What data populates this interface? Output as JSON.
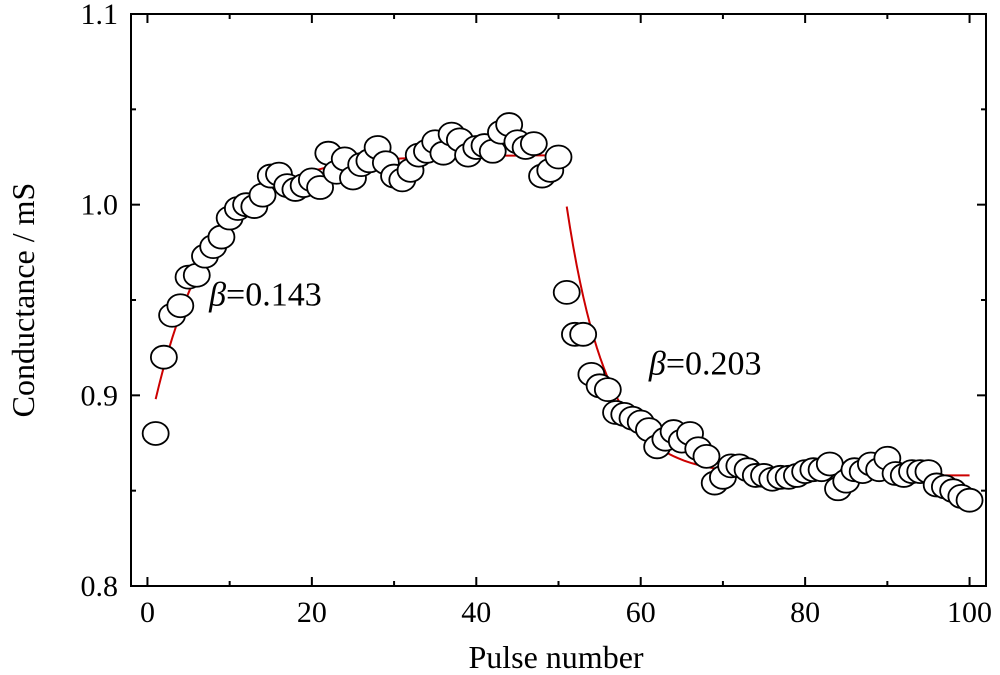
{
  "chart_data": {
    "type": "scatter",
    "title": "",
    "xlabel": "Pulse number",
    "ylabel": "Conductance / mS",
    "xlim": [
      -2,
      102
    ],
    "ylim": [
      0.8,
      1.1
    ],
    "xticks": [
      0,
      20,
      40,
      60,
      80,
      100
    ],
    "yticks": [
      0.8,
      0.9,
      1.0,
      1.1
    ],
    "xtick_labels": [
      "0",
      "20",
      "40",
      "60",
      "80",
      "100"
    ],
    "ytick_labels": [
      "0.8",
      "0.9",
      "1.0",
      "1.1"
    ],
    "grid": false,
    "legend": "none",
    "marker_color": "#ffffff",
    "marker_edge_color": "#000000",
    "fit_color": "#cc0000",
    "annotations": [
      {
        "symbol": "β",
        "text": "=0.143",
        "x": 7.5,
        "y": 0.947
      },
      {
        "symbol": "β",
        "text": "=0.203",
        "x": 61,
        "y": 0.911
      }
    ],
    "series": [
      {
        "x": [
          1,
          2,
          3,
          4,
          5,
          6,
          7,
          8,
          9,
          10,
          11,
          12,
          13,
          14,
          15,
          16,
          17,
          18,
          19,
          20,
          21,
          22,
          23,
          24,
          25,
          26,
          27,
          28,
          29,
          30,
          31,
          32,
          33,
          34,
          35,
          36,
          37,
          38,
          39,
          40,
          41,
          42,
          43,
          44,
          45,
          46,
          47,
          48,
          49,
          50,
          51,
          52,
          53,
          54,
          55,
          56,
          57,
          58,
          59,
          60,
          61,
          62,
          63,
          64,
          65,
          66,
          67,
          68,
          69,
          70,
          71,
          72,
          73,
          74,
          75,
          76,
          77,
          78,
          79,
          80,
          81,
          82,
          83,
          84,
          85,
          86,
          87,
          88,
          89,
          90,
          91,
          92,
          93,
          94,
          95,
          96,
          97,
          98,
          99,
          100
        ],
        "y": [
          0.88,
          0.92,
          0.942,
          0.947,
          0.962,
          0.963,
          0.973,
          0.978,
          0.983,
          0.993,
          0.998,
          1.0,
          0.999,
          1.005,
          1.015,
          1.016,
          1.01,
          1.008,
          1.01,
          1.013,
          1.009,
          1.027,
          1.017,
          1.024,
          1.014,
          1.021,
          1.023,
          1.03,
          1.022,
          1.015,
          1.013,
          1.018,
          1.026,
          1.028,
          1.033,
          1.027,
          1.037,
          1.034,
          1.026,
          1.03,
          1.031,
          1.028,
          1.038,
          1.042,
          1.033,
          1.03,
          1.032,
          1.015,
          1.018,
          1.025,
          0.954,
          0.932,
          0.932,
          0.911,
          0.905,
          0.903,
          0.891,
          0.89,
          0.888,
          0.886,
          0.882,
          0.873,
          0.877,
          0.881,
          0.876,
          0.88,
          0.872,
          0.868,
          0.854,
          0.857,
          0.863,
          0.863,
          0.861,
          0.858,
          0.858,
          0.856,
          0.857,
          0.857,
          0.858,
          0.86,
          0.861,
          0.861,
          0.864,
          0.851,
          0.855,
          0.861,
          0.86,
          0.864,
          0.861,
          0.867,
          0.859,
          0.858,
          0.86,
          0.86,
          0.86,
          0.853,
          0.852,
          0.85,
          0.847,
          0.845
        ]
      }
    ],
    "fits": [
      {
        "x_start": 1,
        "x_end": 50,
        "y0": 0.898,
        "y_inf": 1.026,
        "k": 0.143
      },
      {
        "x_start": 51,
        "x_end": 100,
        "y0": 0.999,
        "y_inf": 0.858,
        "k": 0.203
      }
    ]
  }
}
